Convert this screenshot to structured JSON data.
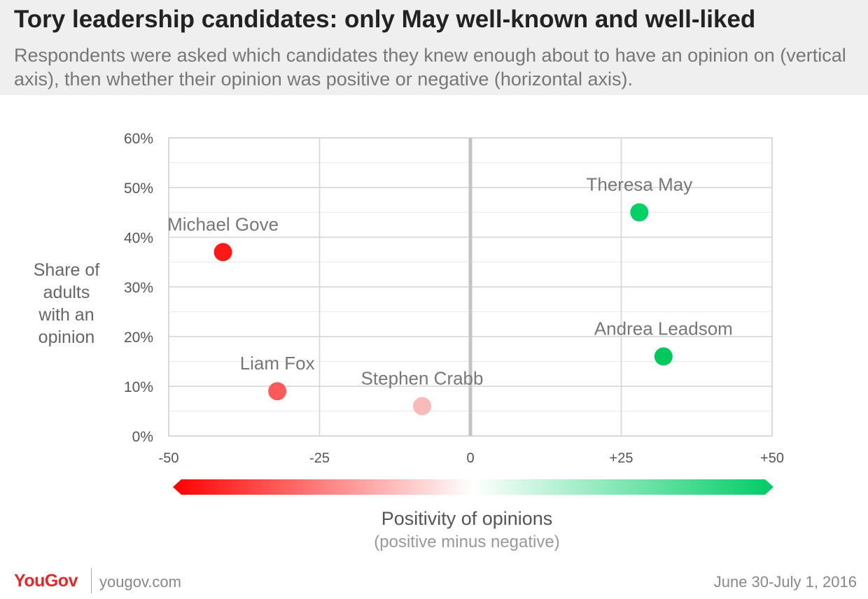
{
  "header": {
    "title": "Tory leadership candidates: only May well-known and well-liked",
    "subtitle": "Respondents were asked which candidates they knew enough about to have an opinion on (vertical axis), then whether their opinion was positive or negative (horizontal axis)."
  },
  "chart_data": {
    "type": "scatter",
    "ylabel_lines": [
      "Share of",
      "adults",
      "with an",
      "opinion"
    ],
    "xlabel": "Positivity of opinions",
    "xlabel_sub": "(positive minus negative)",
    "xlim": [
      -50,
      50
    ],
    "ylim": [
      0,
      60
    ],
    "x_ticks": [
      {
        "value": -50,
        "label": "-50"
      },
      {
        "value": -25,
        "label": "-25"
      },
      {
        "value": 0,
        "label": "0"
      },
      {
        "value": 25,
        "label": "+25"
      },
      {
        "value": 50,
        "label": "+50"
      }
    ],
    "y_ticks": [
      {
        "value": 0,
        "label": "0%"
      },
      {
        "value": 10,
        "label": "10%"
      },
      {
        "value": 20,
        "label": "20%"
      },
      {
        "value": 30,
        "label": "30%"
      },
      {
        "value": 40,
        "label": "40%"
      },
      {
        "value": 50,
        "label": "50%"
      },
      {
        "value": 60,
        "label": "60%"
      }
    ],
    "grid": true,
    "points": [
      {
        "label": "Theresa May",
        "x": 28,
        "y": 45,
        "color": "#00d166"
      },
      {
        "label": "Michael Gove",
        "x": -41,
        "y": 37,
        "color": "#ff1a1a"
      },
      {
        "label": "Andrea Leadsom",
        "x": 32,
        "y": 16,
        "color": "#00c95c"
      },
      {
        "label": "Liam Fox",
        "x": -32,
        "y": 9,
        "color": "#ff5a5a"
      },
      {
        "label": "Stephen Crabb",
        "x": -8,
        "y": 6,
        "color": "#f9baba"
      }
    ],
    "colors": {
      "negative": "#ff0000",
      "neutral": "#ffffff",
      "positive": "#00cc66"
    }
  },
  "footer": {
    "logo": "YouGov",
    "site": "yougov.com",
    "date": "June 30-July 1, 2016"
  }
}
